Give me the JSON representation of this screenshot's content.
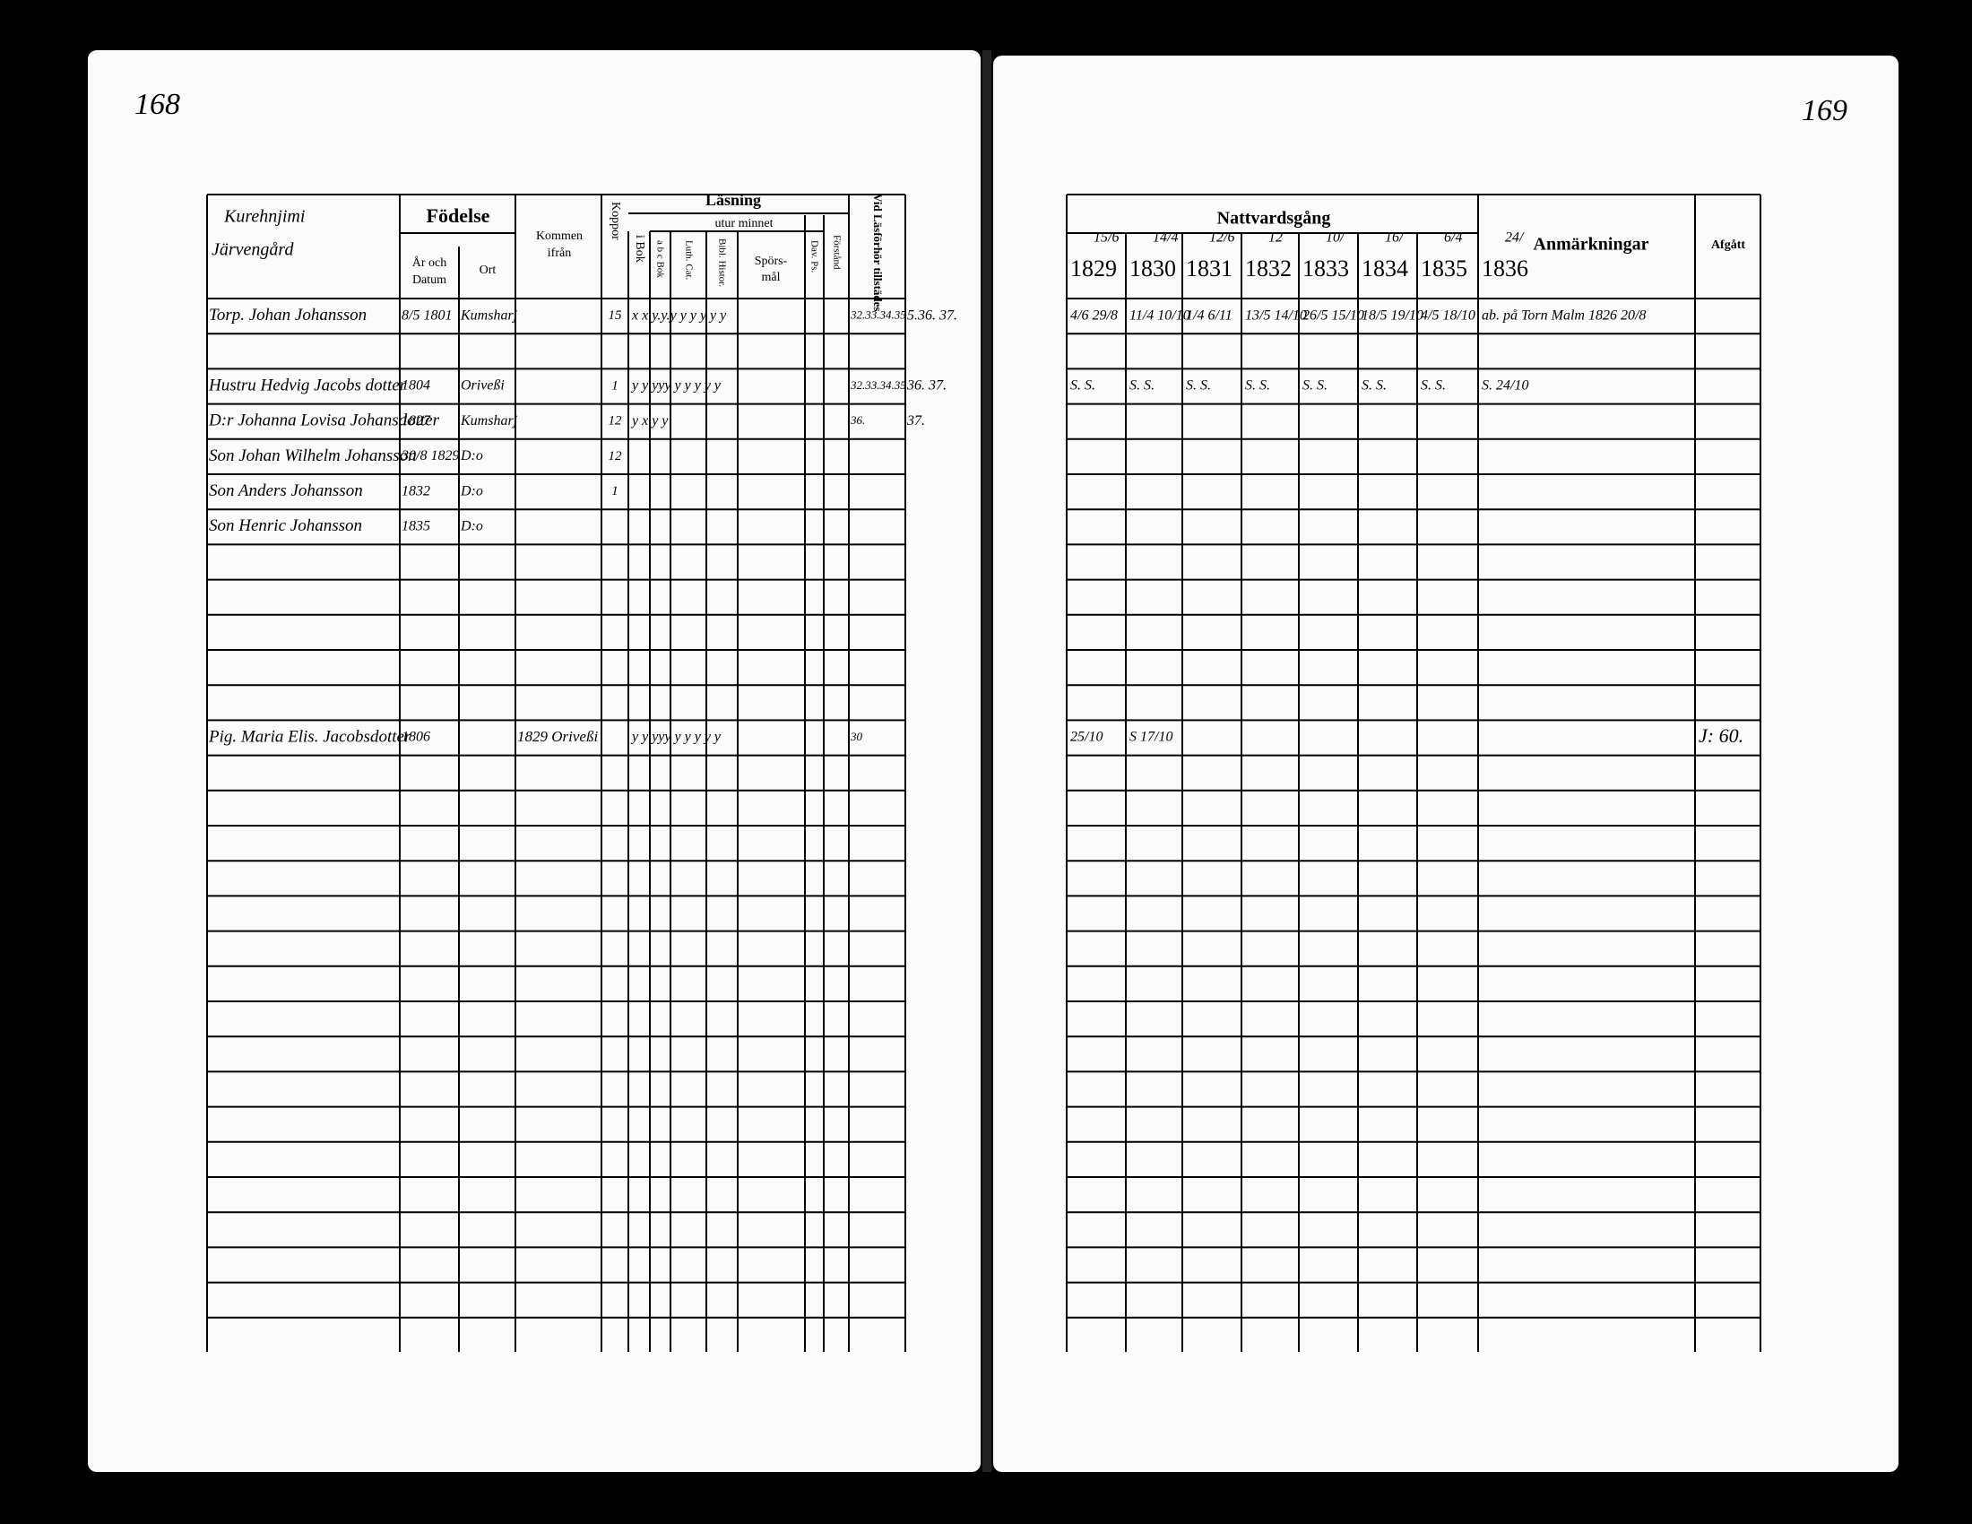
{
  "left_page": {
    "page_number": "168",
    "header": {
      "place_1": "Kurehnjimi",
      "place_2": "Järvengård",
      "birth": "Födelse",
      "birth_date_1": "År och",
      "birth_date_2": "Datum",
      "birth_place": "Ort",
      "from_1": "Kommen",
      "from_2": "ifrån",
      "smallpox": "Koppor",
      "reading": "Läsning",
      "by_heart": "utur minnet",
      "in_book": "i Bok",
      "abc_book": "a b c Bok",
      "luth_cat": "Luth. Cat.",
      "bibl_hist": "Bibl. Histor.",
      "questions_1": "Spörs-",
      "questions_2": "mål",
      "dav_ps": "Dav. Ps.",
      "understanding": "Förstånd",
      "attendance": "Vid Läsförhör tillstädes"
    },
    "entries": [
      {
        "name": "Torp. Johan Johansson",
        "birth_date": "8/5 1801",
        "birth_place": "Kumsharj",
        "smallpox": "15",
        "reading": "x  x  y.y.y  y y  y y y",
        "attendance": "32.33.34.35",
        "margin": "5.36. 37."
      },
      {
        "name": "Hustru Hedvig Jacobs dotter",
        "birth_date": "1804",
        "birth_place": "Oriveßi",
        "smallpox": "1",
        "reading": "y  y  yyy  y y  y y y",
        "attendance": "32.33.34.35",
        "margin": "36. 37."
      },
      {
        "name": "D:r Johanna Lovisa Johansdotter",
        "birth_date": "1827",
        "birth_place": "Kumsharj",
        "smallpox": "12",
        "reading": "y  x  y y",
        "attendance": "36.",
        "margin": "37."
      },
      {
        "name": "Son Johan Wilhelm Johansson",
        "birth_date": "30/8 1829",
        "birth_place": "D:o",
        "smallpox": "12"
      },
      {
        "name": "Son Anders Johansson",
        "birth_date": "1832",
        "birth_place": "D:o",
        "smallpox": "1"
      },
      {
        "name": "Son Henric Johansson",
        "birth_date": "1835",
        "birth_place": "D:o"
      },
      {
        "name": "Pig. Maria Elis. Jacobsdotter",
        "birth_date": "1806",
        "from": "1829 Oriveßi",
        "reading": "y  y  yyy  y y  y y y",
        "attendance": "30"
      }
    ]
  },
  "right_page": {
    "page_number": "169",
    "header": {
      "communion": "Nattvardsgång",
      "remarks": "Anmärkningar",
      "departed": "Afgått",
      "year_notes": [
        "15/6",
        "14/4",
        "12/6",
        "12",
        "10/",
        "16/",
        "6/4",
        "24/"
      ],
      "years": [
        "1829",
        "1830",
        "1831",
        "1832",
        "1833",
        "1834",
        "1835",
        "1836"
      ]
    },
    "entries": [
      {
        "communion": [
          "4/6 29/8",
          "11/4 10/10",
          "1/4 6/11",
          "13/5 14/10",
          "26/5 15/10",
          "18/5 19/10",
          "4/5 18/10"
        ],
        "remarks": "ab. på Torn Malm 1826 20/8"
      },
      {
        "communion": [
          "S. S.",
          "S. S.",
          "S. S.",
          "S. S.",
          "S. S.",
          "S. S.",
          "S. S."
        ],
        "remarks": "S. 24/10"
      },
      {
        "communion": [
          "25/10",
          "S 17/10"
        ],
        "departed": "J: 60."
      }
    ]
  }
}
